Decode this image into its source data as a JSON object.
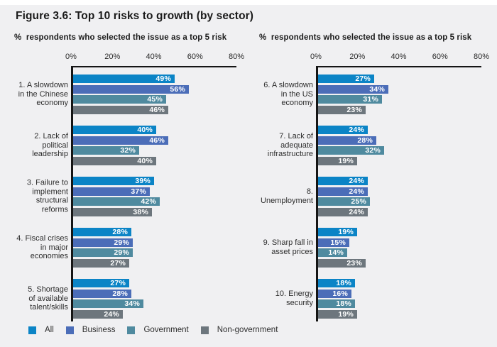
{
  "title": "Figure 3.6: Top 10 risks to growth (by sector)",
  "colors": {
    "panel_background": "#f0f0f2",
    "axis": "#151515",
    "value_label": "#ffffff"
  },
  "legend": [
    {
      "label": "All",
      "color": "#0b84c6"
    },
    {
      "label": "Business",
      "color": "#4b6db8"
    },
    {
      "label": "Government",
      "color": "#4f8a9f"
    },
    {
      "label": "Non-government",
      "color": "#6d767d"
    }
  ],
  "chart_data": [
    {
      "type": "bar",
      "orientation": "horizontal",
      "title": "%  respondents who selected the issue as a top 5 risk",
      "xlim": [
        0,
        80
      ],
      "xticks": [
        "0%",
        "20%",
        "40%",
        "60%",
        "80%"
      ],
      "value_suffix": "%",
      "categories": [
        "1. A slowdown\nin the Chinese\neconomy",
        "2. Lack of\npolitical\nleadership",
        "3. Failure to\nimplement\nstructural\nreforms",
        "4. Fiscal crises\nin major\neconomies",
        "5. Shortage\nof available\ntalent/skills"
      ],
      "series": [
        {
          "name": "All",
          "values": [
            49,
            40,
            39,
            28,
            27
          ]
        },
        {
          "name": "Business",
          "values": [
            56,
            46,
            37,
            29,
            28
          ]
        },
        {
          "name": "Government",
          "values": [
            45,
            32,
            42,
            29,
            34
          ]
        },
        {
          "name": "Non-government",
          "values": [
            46,
            40,
            38,
            27,
            24
          ]
        }
      ]
    },
    {
      "type": "bar",
      "orientation": "horizontal",
      "title": "%  respondents who selected the issue as a top 5 risk",
      "xlim": [
        0,
        80
      ],
      "xticks": [
        "0%",
        "20%",
        "40%",
        "60%",
        "80%"
      ],
      "value_suffix": "%",
      "categories": [
        "6. A slowdown\nin the US\neconomy",
        "7. Lack of\nadequate\ninfrastructure",
        "8. Unemployment",
        "9. Sharp fall in\nasset prices",
        "10. Energy\nsecurity"
      ],
      "series": [
        {
          "name": "All",
          "values": [
            27,
            24,
            24,
            19,
            18
          ]
        },
        {
          "name": "Business",
          "values": [
            34,
            28,
            24,
            15,
            16
          ]
        },
        {
          "name": "Government",
          "values": [
            31,
            32,
            25,
            14,
            18
          ]
        },
        {
          "name": "Non-government",
          "values": [
            23,
            19,
            24,
            23,
            19
          ]
        }
      ]
    }
  ]
}
